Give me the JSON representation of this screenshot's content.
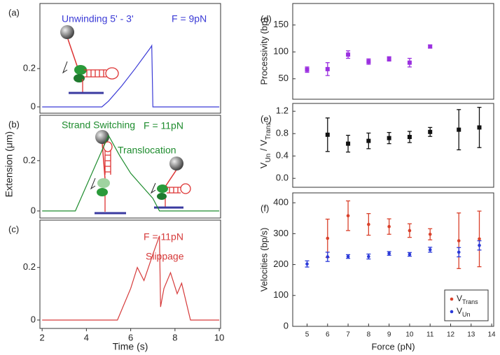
{
  "chart_data": [
    {
      "type": "line",
      "label": "(a)",
      "annotations": [
        "Unwinding 5' - 3'",
        "F = 9pN"
      ],
      "xlim": [
        1.9,
        10.06
      ],
      "ylim": [
        -0.033,
        0.54
      ],
      "yticks": [
        0,
        0.2
      ],
      "x": [
        2,
        4.7,
        5.0,
        5.6,
        6.2,
        6.9,
        6.95,
        7.0,
        10
      ],
      "values": [
        0,
        0,
        0.03,
        0.11,
        0.2,
        0.31,
        0.32,
        0,
        0
      ],
      "color": "#3a3ad6"
    },
    {
      "type": "line",
      "label": "(b)",
      "annotations": [
        "Strand Switching",
        "F = 11pN",
        "Translocation"
      ],
      "ylabel": "Extension (μm)",
      "xlim": [
        1.9,
        10.06
      ],
      "ylim": [
        -0.028,
        0.38
      ],
      "yticks": [
        0,
        0.2
      ],
      "x": [
        2,
        3.5,
        4.0,
        4.5,
        5.0,
        5.5,
        6.0,
        6.5,
        7.0,
        7.3,
        10
      ],
      "values": [
        0,
        0,
        0.1,
        0.2,
        0.3,
        0.22,
        0.15,
        0.1,
        0.05,
        0,
        0
      ],
      "color": "#1e8c2e"
    },
    {
      "type": "line",
      "label": "(c)",
      "annotations": [
        "F = 11pN",
        "Slippage"
      ],
      "xlabel": "Time (s)",
      "xlim": [
        1.9,
        10.06
      ],
      "xticks": [
        2,
        4,
        6,
        8,
        10
      ],
      "ylim": [
        -0.032,
        0.38
      ],
      "yticks": [
        0,
        0.2
      ],
      "x": [
        2,
        5.4,
        6.0,
        6.3,
        6.6,
        7.0,
        7.3,
        7.35,
        7.5,
        7.8,
        8.1,
        8.3,
        8.7,
        10
      ],
      "values": [
        0,
        0,
        0.12,
        0.2,
        0.15,
        0.25,
        0.32,
        0.05,
        0.12,
        0.18,
        0.1,
        0.14,
        0,
        0
      ],
      "color": "#d63a3a"
    },
    {
      "type": "errorbar",
      "label": "(d)",
      "ylabel": "Processivity (bp)",
      "xlim": [
        4.3,
        14.1
      ],
      "ylim": [
        12,
        190
      ],
      "yticks": [
        50,
        100,
        150
      ],
      "series": [
        {
          "color": "#9b30e0",
          "x": [
            5,
            6,
            7,
            8,
            9,
            10,
            11
          ],
          "values": [
            67,
            68,
            95,
            82,
            87,
            80,
            110
          ],
          "errors": [
            5,
            12,
            7,
            5,
            4,
            8,
            3
          ]
        }
      ]
    },
    {
      "type": "errorbar",
      "label": "(e)",
      "ylabel": [
        "V",
        "Un",
        " / V",
        "Trans"
      ],
      "xlim": [
        4.3,
        14.1
      ],
      "ylim": [
        -0.16,
        1.34
      ],
      "yticks": [
        {
          "value": 0,
          "label": "0.0"
        },
        0.4,
        0.8,
        1.2
      ],
      "series": [
        {
          "color": "#111111",
          "x": [
            6,
            7,
            8,
            9,
            10,
            11,
            12.4,
            13.4
          ],
          "values": [
            0.78,
            0.62,
            0.67,
            0.72,
            0.74,
            0.83,
            0.87,
            0.91
          ],
          "errors": [
            0.3,
            0.15,
            0.14,
            0.1,
            0.1,
            0.08,
            0.36,
            0.36
          ]
        }
      ]
    },
    {
      "type": "errorbar",
      "label": "(f)",
      "ylabel": "Velocities (bp/s)",
      "xlabel": "Force (pN)",
      "xlim": [
        4.3,
        14.1
      ],
      "xticks": [
        5,
        6,
        7,
        8,
        9,
        10,
        11,
        12,
        13,
        14
      ],
      "ylim": [
        0,
        432
      ],
      "yticks": [
        0,
        100,
        200,
        300,
        400
      ],
      "legend": "lower right",
      "series": [
        {
          "name": "V",
          "subscript": "Trans",
          "color": "#d9412b",
          "x": [
            6,
            7,
            8,
            9,
            10,
            11,
            12.4,
            13.4
          ],
          "values": [
            285,
            358,
            330,
            323,
            310,
            298,
            277,
            283
          ],
          "errors": [
            62,
            48,
            35,
            25,
            22,
            18,
            90,
            90
          ]
        },
        {
          "name": "V",
          "subscript": "Un",
          "color": "#2b3ad9",
          "x": [
            5,
            6,
            7,
            8,
            9,
            10,
            11,
            12.4,
            13.4
          ],
          "values": [
            202,
            225,
            226,
            226,
            236,
            233,
            248,
            240,
            262
          ],
          "errors": [
            10,
            15,
            6,
            8,
            6,
            6,
            8,
            15,
            15
          ]
        }
      ]
    }
  ]
}
